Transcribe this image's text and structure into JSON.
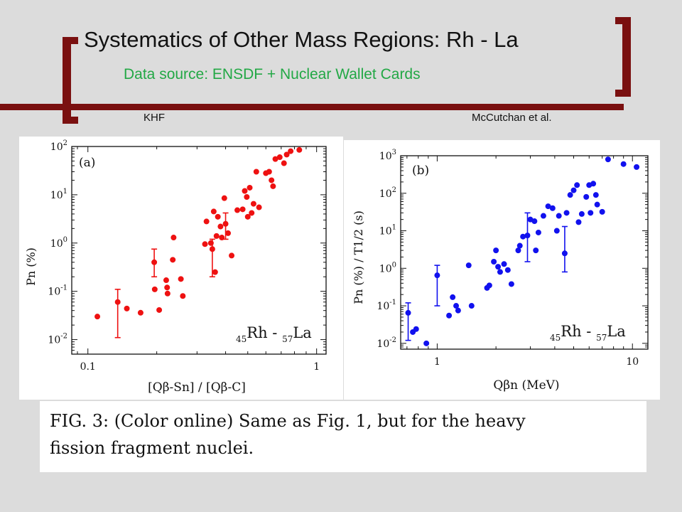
{
  "slide": {
    "title": "Systematics of Other Mass Regions: Rh - La",
    "subtitle": "Data source: ENSDF + Nuclear Wallet Cards",
    "credit_left": "KHF",
    "credit_right": "McCutchan et al.",
    "accent_color": "#7a1010",
    "subtitle_color": "#22a845"
  },
  "caption": {
    "line1": "FIG. 3:  (Color online)  Same as Fig.  1, but for the heavy",
    "line2": "fission fragment nuclei."
  },
  "chart_data": [
    {
      "type": "scatter",
      "panel_label": "(a)",
      "annotation": "45Rh - 57La",
      "annotation_parts": {
        "z1": "45",
        "el1": "Rh - ",
        "z2": "57",
        "el2": "La"
      },
      "xlabel": "[Qβ-Sn] / [Qβ-C]",
      "ylabel": "Pn (%)",
      "xscale": "log",
      "yscale": "log",
      "xlim": [
        0.085,
        1.1
      ],
      "ylim": [
        0.005,
        100
      ],
      "x_ticks": [
        "0.1",
        "1"
      ],
      "y_ticks": [
        "10^-2",
        "10^-1",
        "10^0",
        "10^1",
        "10^2"
      ],
      "color": "#ee1111",
      "points": [
        {
          "x": 0.11,
          "y": 0.03
        },
        {
          "x": 0.135,
          "y": 0.06,
          "ylo": 0.011,
          "yhi": 0.11
        },
        {
          "x": 0.148,
          "y": 0.044
        },
        {
          "x": 0.17,
          "y": 0.036
        },
        {
          "x": 0.195,
          "y": 0.4,
          "ylo": 0.2,
          "yhi": 0.75
        },
        {
          "x": 0.196,
          "y": 0.11
        },
        {
          "x": 0.205,
          "y": 0.041
        },
        {
          "x": 0.22,
          "y": 0.17
        },
        {
          "x": 0.222,
          "y": 0.12
        },
        {
          "x": 0.223,
          "y": 0.09
        },
        {
          "x": 0.235,
          "y": 0.45
        },
        {
          "x": 0.237,
          "y": 1.3
        },
        {
          "x": 0.255,
          "y": 0.18
        },
        {
          "x": 0.26,
          "y": 0.08
        },
        {
          "x": 0.325,
          "y": 0.95
        },
        {
          "x": 0.33,
          "y": 2.8
        },
        {
          "x": 0.345,
          "y": 1.0
        },
        {
          "x": 0.35,
          "y": 0.75,
          "ylo": 0.2,
          "yhi": 1.2
        },
        {
          "x": 0.355,
          "y": 4.5
        },
        {
          "x": 0.36,
          "y": 0.25
        },
        {
          "x": 0.365,
          "y": 1.4
        },
        {
          "x": 0.37,
          "y": 3.5
        },
        {
          "x": 0.38,
          "y": 2.2
        },
        {
          "x": 0.385,
          "y": 1.3
        },
        {
          "x": 0.395,
          "y": 8.5
        },
        {
          "x": 0.4,
          "y": 2.5,
          "ylo": 1.2,
          "yhi": 4.2
        },
        {
          "x": 0.41,
          "y": 1.6
        },
        {
          "x": 0.425,
          "y": 0.55
        },
        {
          "x": 0.45,
          "y": 4.8
        },
        {
          "x": 0.475,
          "y": 5.0
        },
        {
          "x": 0.485,
          "y": 12
        },
        {
          "x": 0.495,
          "y": 9
        },
        {
          "x": 0.5,
          "y": 3.5
        },
        {
          "x": 0.51,
          "y": 14
        },
        {
          "x": 0.52,
          "y": 4.2
        },
        {
          "x": 0.53,
          "y": 6.5
        },
        {
          "x": 0.545,
          "y": 30
        },
        {
          "x": 0.56,
          "y": 5.5
        },
        {
          "x": 0.6,
          "y": 28
        },
        {
          "x": 0.62,
          "y": 30
        },
        {
          "x": 0.635,
          "y": 20
        },
        {
          "x": 0.645,
          "y": 15
        },
        {
          "x": 0.66,
          "y": 55
        },
        {
          "x": 0.69,
          "y": 60
        },
        {
          "x": 0.72,
          "y": 45
        },
        {
          "x": 0.74,
          "y": 68
        },
        {
          "x": 0.77,
          "y": 80
        },
        {
          "x": 0.84,
          "y": 85
        }
      ]
    },
    {
      "type": "scatter",
      "panel_label": "(b)",
      "annotation": "45Rh - 57La",
      "annotation_parts": {
        "z1": "45",
        "el1": "Rh - ",
        "z2": "57",
        "el2": "La"
      },
      "xlabel": "Qβn (MeV)",
      "ylabel": "Pn (%) / T1/2 (s)",
      "xscale": "log",
      "yscale": "log",
      "xlim": [
        0.65,
        12
      ],
      "ylim": [
        0.007,
        1000
      ],
      "x_ticks": [
        "1",
        "10"
      ],
      "y_ticks": [
        "10^-2",
        "10^-1",
        "10^0",
        "10^1",
        "10^2",
        "10^3"
      ],
      "color": "#1111ee",
      "points": [
        {
          "x": 0.71,
          "y": 0.065,
          "ylo": 0.012,
          "yhi": 0.12
        },
        {
          "x": 0.75,
          "y": 0.02
        },
        {
          "x": 0.78,
          "y": 0.024
        },
        {
          "x": 0.88,
          "y": 0.01
        },
        {
          "x": 1.0,
          "y": 0.65,
          "ylo": 0.1,
          "yhi": 1.2
        },
        {
          "x": 1.15,
          "y": 0.055
        },
        {
          "x": 1.2,
          "y": 0.17
        },
        {
          "x": 1.25,
          "y": 0.1
        },
        {
          "x": 1.28,
          "y": 0.075
        },
        {
          "x": 1.45,
          "y": 1.2
        },
        {
          "x": 1.5,
          "y": 0.1
        },
        {
          "x": 1.8,
          "y": 0.3
        },
        {
          "x": 1.85,
          "y": 0.35
        },
        {
          "x": 1.95,
          "y": 1.5
        },
        {
          "x": 2.0,
          "y": 3.0
        },
        {
          "x": 2.05,
          "y": 1.1
        },
        {
          "x": 2.1,
          "y": 0.8
        },
        {
          "x": 2.2,
          "y": 1.3
        },
        {
          "x": 2.3,
          "y": 0.9
        },
        {
          "x": 2.4,
          "y": 0.38
        },
        {
          "x": 2.6,
          "y": 3.0
        },
        {
          "x": 2.65,
          "y": 4.0
        },
        {
          "x": 2.75,
          "y": 7
        },
        {
          "x": 2.9,
          "y": 7.5,
          "ylo": 1.5,
          "yhi": 30
        },
        {
          "x": 3.0,
          "y": 20
        },
        {
          "x": 3.15,
          "y": 18
        },
        {
          "x": 3.2,
          "y": 3.0
        },
        {
          "x": 3.3,
          "y": 9
        },
        {
          "x": 3.5,
          "y": 25
        },
        {
          "x": 3.7,
          "y": 45
        },
        {
          "x": 3.9,
          "y": 40
        },
        {
          "x": 4.1,
          "y": 10
        },
        {
          "x": 4.2,
          "y": 25
        },
        {
          "x": 4.5,
          "y": 2.5,
          "ylo": 0.8,
          "yhi": 13
        },
        {
          "x": 4.6,
          "y": 30
        },
        {
          "x": 4.8,
          "y": 90
        },
        {
          "x": 5.0,
          "y": 120
        },
        {
          "x": 5.2,
          "y": 165
        },
        {
          "x": 5.3,
          "y": 17
        },
        {
          "x": 5.5,
          "y": 28
        },
        {
          "x": 5.8,
          "y": 80
        },
        {
          "x": 6.0,
          "y": 165
        },
        {
          "x": 6.1,
          "y": 30
        },
        {
          "x": 6.3,
          "y": 180
        },
        {
          "x": 6.5,
          "y": 90
        },
        {
          "x": 6.6,
          "y": 50
        },
        {
          "x": 7.0,
          "y": 32
        },
        {
          "x": 7.5,
          "y": 800
        },
        {
          "x": 9.0,
          "y": 600
        },
        {
          "x": 10.5,
          "y": 500
        }
      ]
    }
  ]
}
